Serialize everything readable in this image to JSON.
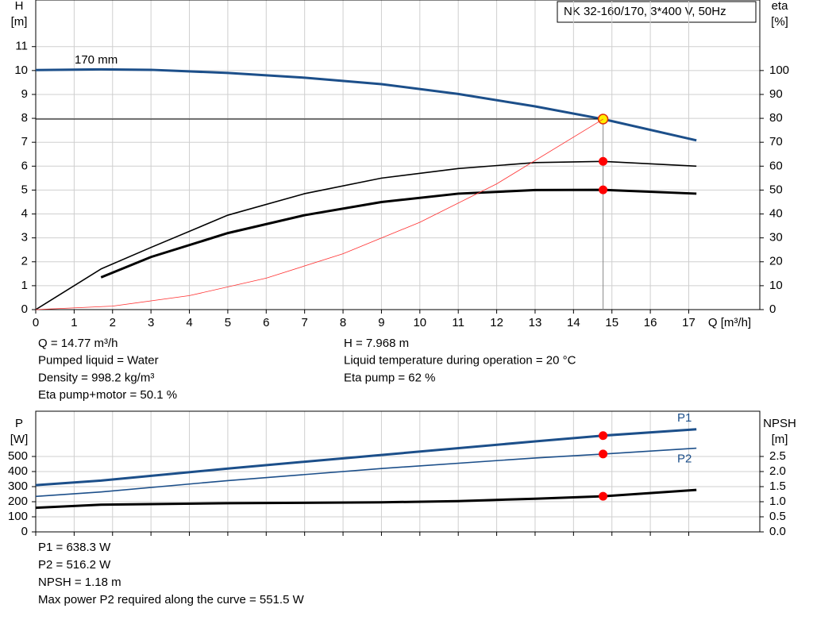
{
  "model": "NK 32-160/170, 3*400 V, 50Hz",
  "chart_data": [
    {
      "type": "line",
      "operating_q": 14.77,
      "y_label": [
        "H",
        "[m]"
      ],
      "y2_label": [
        "eta",
        "[%]"
      ],
      "x_label": "Q [m³/h]",
      "curve_label": "170 mm",
      "xlim": [
        0,
        18.85
      ],
      "xticks": [
        0,
        1,
        2,
        3,
        4,
        5,
        6,
        7,
        8,
        9,
        10,
        11,
        12,
        13,
        14,
        15,
        16,
        17
      ],
      "ylim": [
        0,
        12.95
      ],
      "yticks": [
        0,
        1,
        2,
        3,
        4,
        5,
        6,
        7,
        8,
        9,
        10,
        11
      ],
      "y2lim": [
        0,
        129.5
      ],
      "y2ticks": [
        0,
        10,
        20,
        30,
        40,
        50,
        60,
        70,
        80,
        90,
        100
      ],
      "grid": true,
      "series": [
        {
          "color": "#1c4f8a",
          "width": 3,
          "x": [
            0,
            1.7,
            3,
            5,
            7,
            9,
            11,
            13,
            14.77,
            17.2
          ],
          "values": [
            10.02,
            10.05,
            10.03,
            9.9,
            9.7,
            9.43,
            9.02,
            8.5,
            7.968,
            7.08
          ],
          "marker": 7.968,
          "marker_color": "#ffee00"
        },
        {
          "color": "#000000",
          "width": 1.6,
          "axis": "y2",
          "x": [
            0,
            1.7,
            3,
            5,
            7,
            9,
            11,
            13,
            14.77,
            17.2
          ],
          "values": [
            0,
            17,
            26,
            39.5,
            48.5,
            55,
            59,
            61.5,
            62,
            60
          ],
          "marker": 62,
          "marker_color": "#ff0000"
        },
        {
          "color": "#000000",
          "width": 3,
          "axis": "y2",
          "x": [
            1.7,
            3,
            5,
            7,
            9,
            11,
            13,
            14.77,
            17.2
          ],
          "values": [
            13.5,
            22,
            32,
            39.5,
            45,
            48.5,
            50,
            50.1,
            48.5
          ],
          "marker": 50.1,
          "marker_color": "#ff0000"
        },
        {
          "color": "#ff3030",
          "width": 0.8,
          "x": [
            0,
            2,
            4,
            6,
            8,
            10,
            12,
            14.77
          ],
          "values": [
            0,
            0.146,
            0.584,
            1.315,
            2.338,
            3.653,
            5.26,
            7.968
          ]
        }
      ]
    },
    {
      "type": "line",
      "operating_q": 14.77,
      "y_label": [
        "P",
        "[W]"
      ],
      "y2_label": [
        "NPSH",
        "[m]"
      ],
      "xlim": [
        0,
        18.85
      ],
      "xticks": [
        0,
        1,
        2,
        3,
        4,
        5,
        6,
        7,
        8,
        9,
        10,
        11,
        12,
        13,
        14,
        15,
        16,
        17
      ],
      "ylim": [
        0,
        800
      ],
      "yticks": [
        0,
        100,
        200,
        300,
        400,
        500
      ],
      "y2lim": [
        0,
        4
      ],
      "y2ticks": [
        {
          "value": 0,
          "label": "0.0"
        },
        0.5,
        {
          "value": 1,
          "label": "1.0"
        },
        1.5,
        {
          "value": 2,
          "label": "2.0"
        },
        2.5
      ],
      "grid": true,
      "series": [
        {
          "name": "P1",
          "color": "#1c4f8a",
          "width": 3,
          "x": [
            0,
            1.7,
            5,
            9,
            13,
            14.77,
            17.2
          ],
          "values": [
            310,
            340,
            420,
            510,
            600,
            638.3,
            680
          ],
          "marker": 638.3,
          "marker_color": "#ff0000"
        },
        {
          "name": "P2",
          "color": "#1c4f8a",
          "width": 1.6,
          "x": [
            0,
            1.7,
            5,
            9,
            13,
            14.77,
            17.2
          ],
          "values": [
            235,
            265,
            340,
            420,
            490,
            516.2,
            555
          ],
          "marker": 516.2,
          "marker_color": "#ff0000"
        },
        {
          "color": "#000000",
          "width": 3,
          "axis": "y2",
          "x": [
            0,
            1.7,
            5,
            9,
            11,
            13,
            14.77,
            17.2
          ],
          "values": [
            0.8,
            0.9,
            0.95,
            0.98,
            1.02,
            1.1,
            1.18,
            1.39
          ],
          "marker": 1.18,
          "marker_color": "#ff0000"
        }
      ]
    }
  ],
  "readouts_top_left": [
    "Q = 14.77 m³/h",
    "Pumped liquid = Water",
    "Density = 998.2 kg/m³",
    "Eta pump+motor = 50.1 %"
  ],
  "readouts_top_right": [
    "H = 7.968 m",
    "Liquid temperature during operation = 20 °C",
    "Eta pump = 62 %"
  ],
  "readouts_bottom": [
    "P1 = 638.3 W",
    "P2 = 516.2 W",
    "NPSH = 1.18 m",
    "Max power P2 required along the curve = 551.5 W"
  ]
}
